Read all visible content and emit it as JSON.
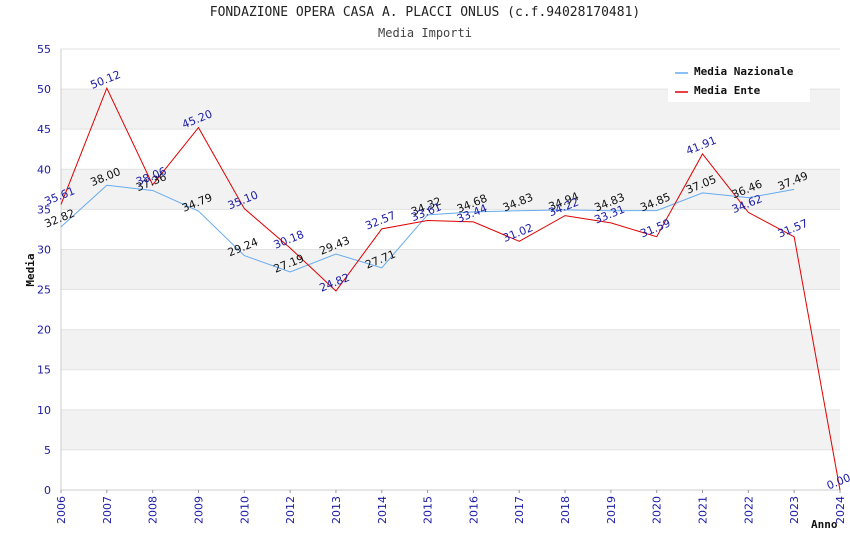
{
  "chart_data": {
    "type": "line",
    "title": "FONDAZIONE OPERA CASA A. PLACCI ONLUS (c.f.94028170481)",
    "subtitle": "Media Importi",
    "xlabel": "Anno",
    "ylabel": "Media",
    "categories": [
      "2006",
      "2007",
      "2008",
      "2009",
      "2010",
      "2012",
      "2013",
      "2014",
      "2015",
      "2016",
      "2017",
      "2018",
      "2019",
      "2020",
      "2021",
      "2022",
      "2023",
      "2024"
    ],
    "ylim": [
      0,
      55
    ],
    "yticks": [
      0,
      5,
      10,
      15,
      20,
      25,
      30,
      35,
      40,
      45,
      50,
      55
    ],
    "grid": "horizontal alternating bands",
    "legend_position": "top-right",
    "series": [
      {
        "name": "Media Nazionale",
        "color": "#66aaee",
        "values": [
          32.82,
          38.0,
          37.36,
          34.79,
          29.24,
          27.19,
          29.43,
          27.71,
          34.32,
          34.68,
          34.83,
          34.94,
          34.83,
          34.85,
          37.05,
          36.46,
          37.49,
          null
        ],
        "labels": [
          "32.82",
          "38.00",
          "37.36",
          "34.79",
          "29.24",
          "27.19",
          "29.43",
          "27.71",
          "34.32",
          "34.68",
          "34.83",
          "34.94",
          "34.83",
          "34.85",
          "37.05",
          "36.46",
          "37.49",
          ""
        ]
      },
      {
        "name": "Media Ente",
        "color": "#e00000",
        "values": [
          35.61,
          50.12,
          38.06,
          45.2,
          35.1,
          30.18,
          24.82,
          32.57,
          33.61,
          33.44,
          31.02,
          34.22,
          33.31,
          31.59,
          41.91,
          34.62,
          31.57,
          0.0
        ],
        "labels": [
          "35.61",
          "50.12",
          "38.06",
          "45.20",
          "35.10",
          "30.18",
          "24.82",
          "32.57",
          "33.61",
          "33.44",
          "31.02",
          "34.22",
          "33.31",
          "31.59",
          "41.91",
          "34.62",
          "31.57",
          "0.00"
        ]
      }
    ]
  }
}
